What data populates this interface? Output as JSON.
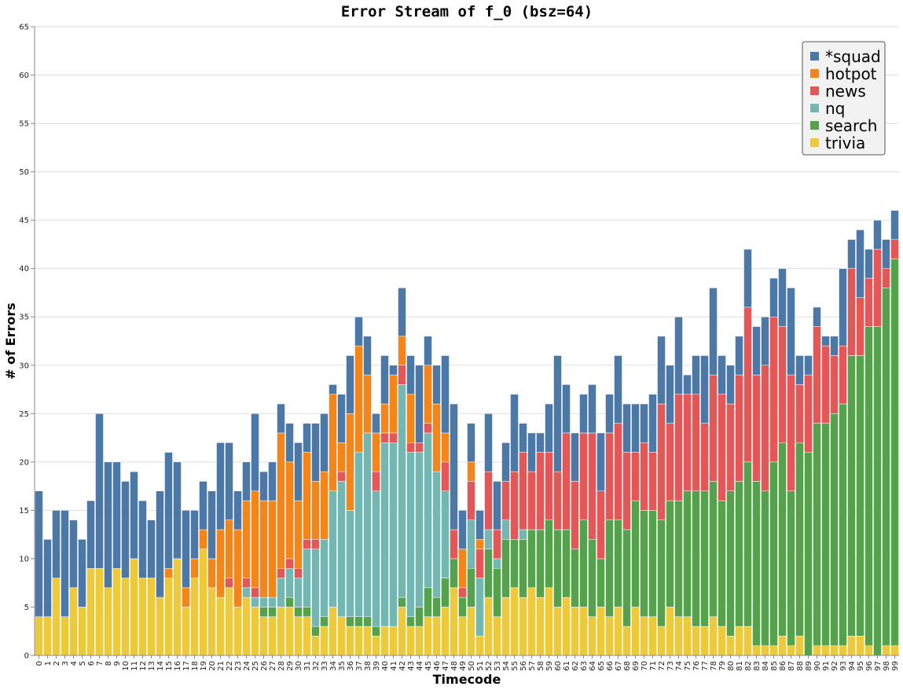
{
  "chart_data": {
    "type": "bar",
    "stacked": true,
    "title": "Error Stream of f_0 (bsz=64)",
    "xlabel": "Timecode",
    "ylabel": "# of Errors",
    "ylim": [
      0,
      65
    ],
    "yticks": [
      0,
      5,
      10,
      15,
      20,
      25,
      30,
      35,
      40,
      45,
      50,
      55,
      60,
      65
    ],
    "grid": true,
    "legend_position": "top-right",
    "categories": [
      "0",
      "1",
      "2",
      "3",
      "4",
      "5",
      "6",
      "7",
      "8",
      "9",
      "10",
      "11",
      "12",
      "13",
      "14",
      "15",
      "16",
      "17",
      "18",
      "19",
      "20",
      "21",
      "22",
      "23",
      "24",
      "25",
      "26",
      "27",
      "28",
      "29",
      "30",
      "31",
      "32",
      "33",
      "34",
      "35",
      "36",
      "37",
      "38",
      "39",
      "40",
      "41",
      "42",
      "43",
      "44",
      "45",
      "46",
      "47",
      "48",
      "49",
      "50",
      "51",
      "52",
      "53",
      "54",
      "55",
      "56",
      "57",
      "58",
      "59",
      "60",
      "61",
      "62",
      "63",
      "64",
      "65",
      "66",
      "67",
      "68",
      "69",
      "70",
      "71",
      "72",
      "73",
      "74",
      "75",
      "76",
      "77",
      "78",
      "79",
      "80",
      "81",
      "82",
      "83",
      "84",
      "85",
      "86",
      "87",
      "88",
      "89",
      "90",
      "91",
      "92",
      "93",
      "94",
      "95",
      "96",
      "97",
      "98",
      "99"
    ],
    "series": [
      {
        "name": "trivia",
        "color": "#eeca3b",
        "values": [
          4,
          4,
          8,
          4,
          7,
          5,
          9,
          9,
          7,
          9,
          8,
          10,
          8,
          8,
          6,
          8,
          10,
          5,
          8,
          11,
          7,
          6,
          7,
          5,
          6,
          5,
          4,
          4,
          5,
          5,
          4,
          4,
          2,
          3,
          5,
          4,
          3,
          3,
          3,
          2,
          3,
          3,
          5,
          3,
          3,
          4,
          4,
          5,
          7,
          4,
          5,
          2,
          6,
          4,
          6,
          7,
          6,
          7,
          6,
          7,
          5,
          6,
          5,
          5,
          4,
          5,
          4,
          5,
          3,
          5,
          4,
          4,
          3,
          5,
          4,
          4,
          3,
          3,
          4,
          3,
          2,
          3,
          3,
          1,
          1,
          1,
          2,
          1,
          2,
          0,
          1,
          1,
          1,
          1,
          2,
          2,
          1,
          0,
          1,
          1
        ]
      },
      {
        "name": "search",
        "color": "#54a24b",
        "values": [
          0,
          0,
          0,
          0,
          0,
          0,
          0,
          0,
          0,
          0,
          0,
          0,
          0,
          0,
          0,
          0,
          0,
          0,
          0,
          0,
          0,
          0,
          0,
          0,
          0,
          0,
          1,
          1,
          0,
          1,
          1,
          1,
          1,
          1,
          0,
          0,
          1,
          1,
          1,
          1,
          0,
          0,
          1,
          1,
          2,
          3,
          2,
          3,
          3,
          2,
          4,
          0,
          5,
          5,
          6,
          5,
          6,
          6,
          7,
          7,
          8,
          7,
          6,
          9,
          8,
          5,
          10,
          9,
          10,
          11,
          11,
          11,
          11,
          11,
          12,
          13,
          14,
          14,
          14,
          13,
          15,
          15,
          17,
          17,
          16,
          19,
          20,
          16,
          20,
          21,
          23,
          23,
          24,
          25,
          29,
          29,
          33,
          34,
          37,
          40
        ]
      },
      {
        "name": "nq",
        "color": "#72b7b2",
        "values": [
          0,
          0,
          0,
          0,
          0,
          0,
          0,
          0,
          0,
          0,
          0,
          0,
          0,
          0,
          0,
          0,
          0,
          0,
          0,
          0,
          0,
          0,
          0,
          0,
          1,
          1,
          1,
          1,
          3,
          3,
          3,
          6,
          8,
          8,
          12,
          14,
          11,
          17,
          19,
          14,
          19,
          19,
          22,
          17,
          16,
          16,
          13,
          9,
          0,
          0,
          5,
          6,
          2,
          1,
          2,
          0,
          1,
          0,
          0,
          0,
          0,
          0,
          0,
          0,
          0,
          0,
          0,
          0,
          0,
          0,
          0,
          0,
          0,
          0,
          0,
          0,
          0,
          0,
          0,
          0,
          0,
          0,
          0,
          0,
          0,
          0,
          0,
          0,
          0,
          0,
          0,
          0,
          0,
          0,
          0,
          0,
          0,
          0,
          0,
          0
        ]
      },
      {
        "name": "news",
        "color": "#e45756",
        "values": [
          0,
          0,
          0,
          0,
          0,
          0,
          0,
          0,
          0,
          0,
          0,
          0,
          0,
          0,
          0,
          0,
          0,
          0,
          0,
          0,
          0,
          0,
          1,
          0,
          1,
          1,
          0,
          0,
          1,
          1,
          1,
          1,
          1,
          0,
          0,
          1,
          0,
          0,
          0,
          2,
          1,
          1,
          2,
          1,
          1,
          1,
          0,
          3,
          3,
          1,
          4,
          3,
          6,
          3,
          4,
          7,
          8,
          6,
          8,
          7,
          6,
          10,
          7,
          9,
          11,
          7,
          9,
          10,
          8,
          5,
          7,
          6,
          12,
          8,
          11,
          10,
          10,
          7,
          11,
          11,
          9,
          11,
          16,
          11,
          13,
          15,
          12,
          12,
          6,
          8,
          10,
          8,
          6,
          6,
          9,
          6,
          5,
          8,
          2,
          2
        ]
      },
      {
        "name": "hotpot",
        "color": "#f58518",
        "values": [
          0,
          0,
          0,
          0,
          0,
          0,
          0,
          0,
          0,
          0,
          0,
          0,
          0,
          0,
          0,
          1,
          0,
          2,
          2,
          2,
          3,
          7,
          6,
          8,
          8,
          10,
          10,
          10,
          14,
          10,
          7,
          9,
          6,
          7,
          10,
          3,
          10,
          11,
          6,
          4,
          3,
          6,
          3,
          5,
          0,
          6,
          7,
          3,
          0,
          4,
          2,
          1,
          0,
          0,
          0,
          0,
          0,
          0,
          0,
          0,
          0,
          0,
          0,
          0,
          0,
          0,
          0,
          0,
          0,
          0,
          0,
          0,
          0,
          0,
          0,
          0,
          0,
          0,
          0,
          0,
          0,
          0,
          0,
          0,
          0,
          0,
          0,
          0,
          0,
          0,
          0,
          0,
          0,
          0,
          0,
          0,
          0,
          0,
          0,
          0
        ]
      },
      {
        "name": "*squad",
        "color": "#4c78a8",
        "values": [
          13,
          8,
          7,
          11,
          7,
          7,
          7,
          16,
          13,
          11,
          10,
          9,
          8,
          6,
          11,
          12,
          10,
          8,
          5,
          5,
          7,
          9,
          8,
          4,
          4,
          8,
          3,
          4,
          3,
          4,
          6,
          3,
          6,
          6,
          1,
          5,
          6,
          3,
          4,
          2,
          5,
          1,
          5,
          4,
          8,
          3,
          4,
          8,
          13,
          4,
          4,
          3,
          6,
          5,
          4,
          8,
          3,
          4,
          2,
          5,
          12,
          5,
          5,
          4,
          5,
          6,
          4,
          7,
          5,
          5,
          4,
          6,
          7,
          6,
          8,
          2,
          4,
          7,
          9,
          4,
          4,
          4,
          6,
          5,
          5,
          4,
          6,
          9,
          3,
          2,
          2,
          1,
          2,
          8,
          3,
          7,
          3,
          3,
          3,
          3
        ]
      }
    ]
  }
}
